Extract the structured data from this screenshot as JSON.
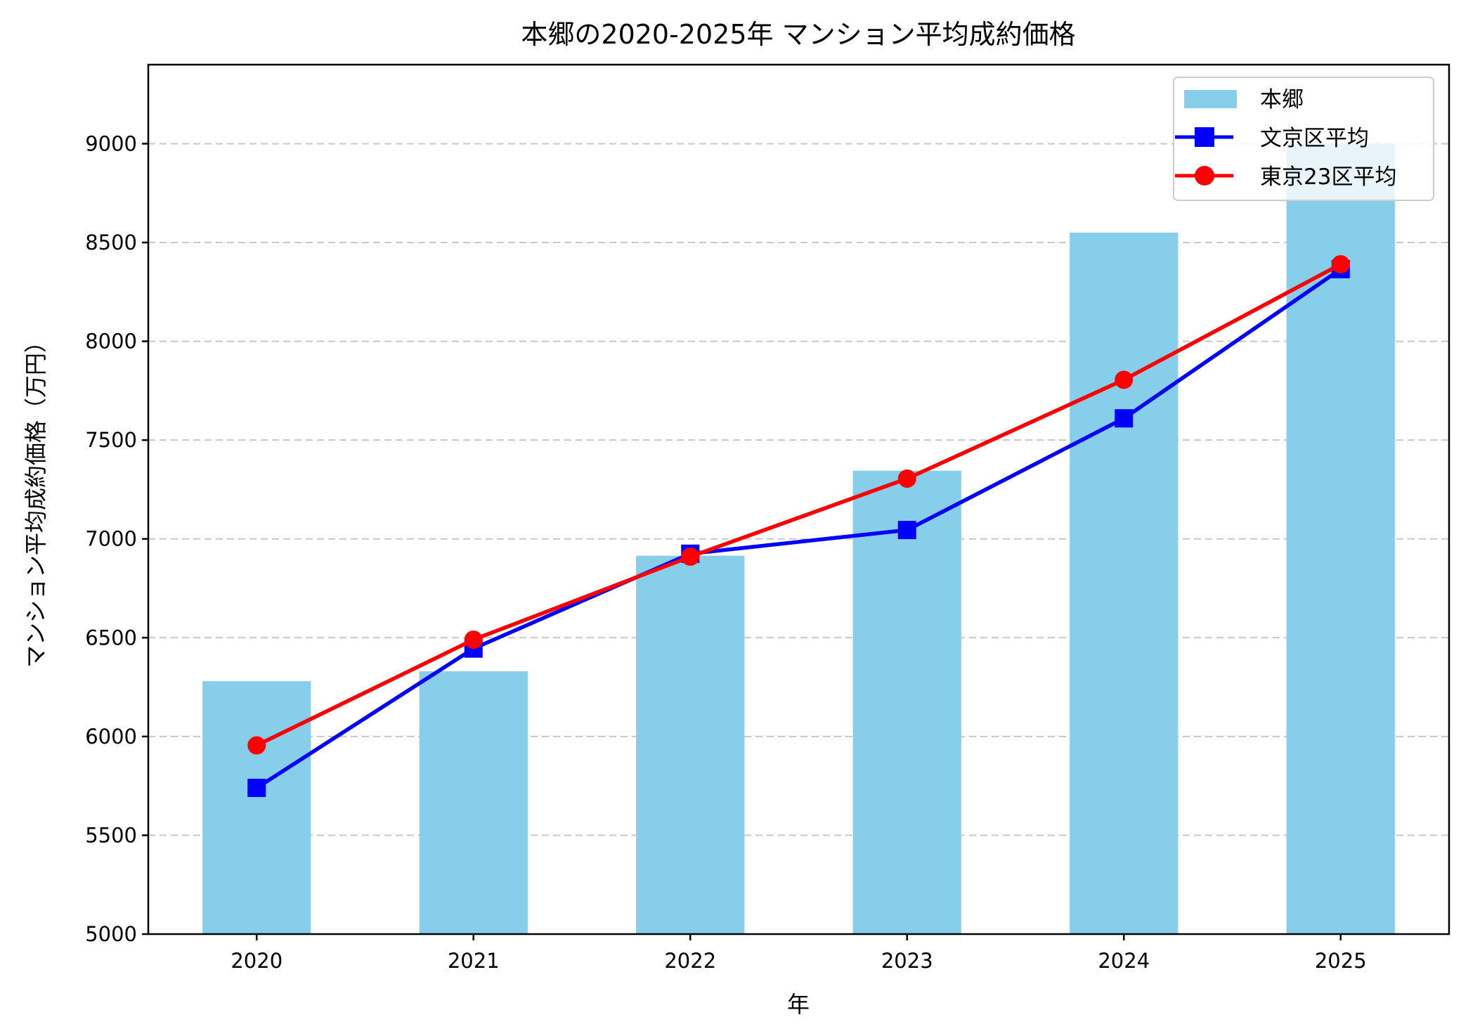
{
  "chart_data": {
    "type": "bar+line",
    "title": "本郷の2020-2025年 マンション平均成約価格",
    "xlabel": "年",
    "ylabel": "マンション平均成約価格（万円）",
    "categories": [
      "2020",
      "2021",
      "2022",
      "2023",
      "2024",
      "2025"
    ],
    "ylim": [
      5000,
      9400
    ],
    "yticks": [
      5000,
      5500,
      6000,
      6500,
      7000,
      7500,
      8000,
      8500,
      9000
    ],
    "grid": "y-dashed",
    "legend_position": "top-right",
    "series": [
      {
        "name": "本郷",
        "kind": "bar",
        "color": "#87CEEB",
        "values": [
          6280,
          6330,
          6915,
          7345,
          8550,
          9000
        ]
      },
      {
        "name": "文京区平均",
        "kind": "line",
        "marker": "square",
        "color": "#0000FF",
        "values": [
          5740,
          6445,
          6925,
          7045,
          7610,
          8365
        ]
      },
      {
        "name": "東京23区平均",
        "kind": "line",
        "marker": "circle",
        "color": "#FF0000",
        "values": [
          5955,
          6490,
          6910,
          7305,
          7805,
          8390
        ]
      }
    ]
  }
}
